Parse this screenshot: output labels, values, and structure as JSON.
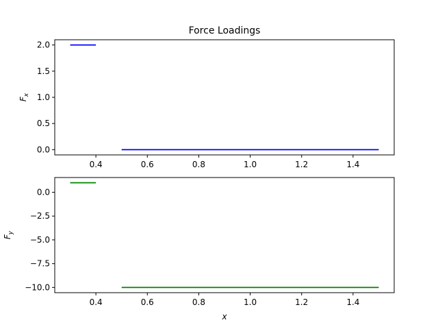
{
  "chart_data": [
    {
      "type": "line",
      "title": "Force Loadings",
      "xlabel": "",
      "ylabel": "F_x",
      "ylabel_main": "F",
      "ylabel_sub": "x",
      "xlim": [
        0.24,
        1.56
      ],
      "ylim": [
        -0.1,
        2.1
      ],
      "xticks": [
        0.4,
        0.6,
        0.8,
        1.0,
        1.2,
        1.4
      ],
      "xtick_labels": [
        "0.4",
        "0.6",
        "0.8",
        "1.0",
        "1.2",
        "1.4"
      ],
      "yticks": [
        0.0,
        0.5,
        1.0,
        1.5,
        2.0
      ],
      "ytick_labels": [
        "0.0",
        "0.5",
        "1.0",
        "1.5",
        "2.0"
      ],
      "grid": false,
      "color": "#0000ff",
      "segments": [
        {
          "x": [
            0.3,
            0.4
          ],
          "y": [
            2.0,
            2.0
          ]
        },
        {
          "x": [
            0.5,
            1.5
          ],
          "y": [
            0.0,
            0.0
          ]
        }
      ]
    },
    {
      "type": "line",
      "title": "",
      "xlabel": "x",
      "ylabel": "F_y",
      "ylabel_main": "F",
      "ylabel_sub": "y",
      "xlim": [
        0.24,
        1.56
      ],
      "ylim": [
        -10.55,
        1.55
      ],
      "xticks": [
        0.4,
        0.6,
        0.8,
        1.0,
        1.2,
        1.4
      ],
      "xtick_labels": [
        "0.4",
        "0.6",
        "0.8",
        "1.0",
        "1.2",
        "1.4"
      ],
      "yticks": [
        0.0,
        -2.5,
        -5.0,
        -7.5,
        -10.0
      ],
      "ytick_labels": [
        "0.0",
        "−2.5",
        "−5.0",
        "−7.5",
        "−10.0"
      ],
      "grid": false,
      "color": "#008000",
      "segments": [
        {
          "x": [
            0.3,
            0.4
          ],
          "y": [
            1.0,
            1.0
          ]
        },
        {
          "x": [
            0.5,
            1.5
          ],
          "y": [
            -10.0,
            -10.0
          ]
        }
      ]
    }
  ]
}
